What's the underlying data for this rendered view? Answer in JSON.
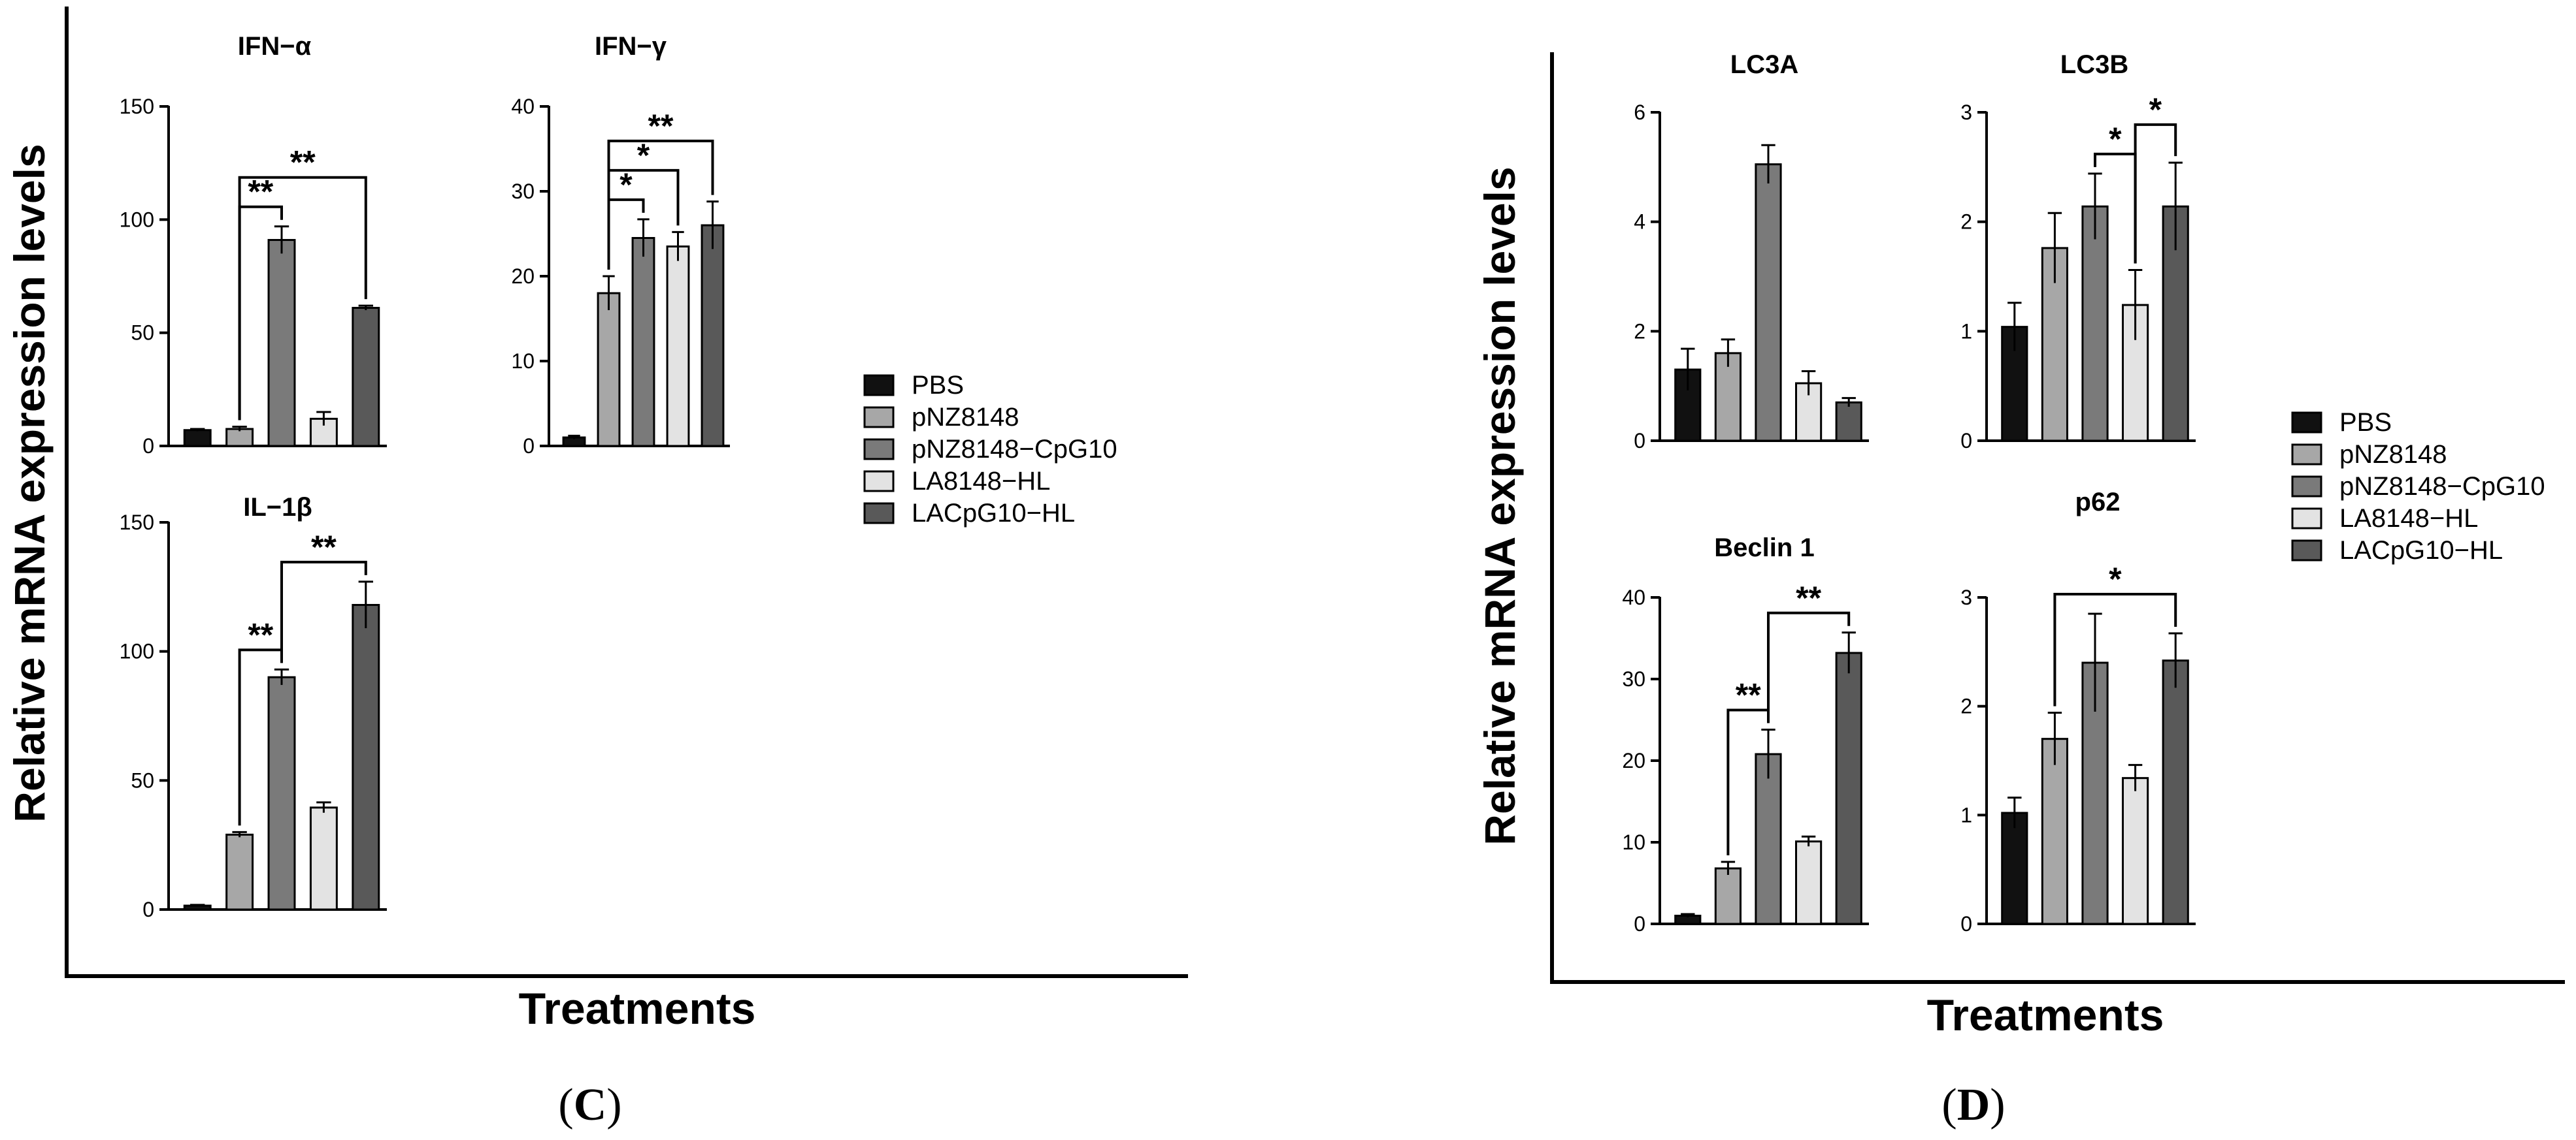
{
  "colors": {
    "PBS": "#111111",
    "pNZ8148": "#a7a7a7",
    "pNZ8148-CpG10": "#7a7a7a",
    "LA8148-HL": "#e3e3e3",
    "LACpG10-HL": "#595959"
  },
  "legend": [
    "PBS",
    "pNZ8148",
    "pNZ8148−CpG10",
    "LA8148−HL",
    "LACpG10−HL"
  ],
  "panels": [
    {
      "label": "C",
      "ylabel": "Relative mRNA expression levels",
      "xlabel": "Treatments"
    },
    {
      "label": "D",
      "ylabel": "Relative mRNA expression levels",
      "xlabel": "Treatments"
    }
  ],
  "chart_data": [
    {
      "type": "bar",
      "panel": "C",
      "title": "IFN−α",
      "categories": [
        "PBS",
        "pNZ8148",
        "pNZ8148-CpG10",
        "LA8148-HL",
        "LACpG10-HL"
      ],
      "values": [
        7,
        7.5,
        91,
        12,
        61
      ],
      "errors": [
        0.5,
        1,
        6,
        3,
        1
      ],
      "ylim": [
        0,
        150
      ],
      "yticks": [
        "0",
        "50",
        "100",
        "150"
      ],
      "significance": [
        {
          "from": 1,
          "to": 2,
          "label": "**"
        },
        {
          "from": 1,
          "to": 4,
          "label": "**"
        }
      ]
    },
    {
      "type": "bar",
      "panel": "C",
      "title": "IFN−γ",
      "categories": [
        "PBS",
        "pNZ8148",
        "pNZ8148-CpG10",
        "LA8148-HL",
        "LACpG10-HL"
      ],
      "values": [
        1,
        18,
        24.5,
        23.5,
        26
      ],
      "errors": [
        0.2,
        2,
        2.2,
        1.7,
        2.8
      ],
      "ylim": [
        0,
        40
      ],
      "yticks": [
        "0",
        "10",
        "20",
        "30",
        "40"
      ],
      "significance": [
        {
          "from": 1,
          "to": 2,
          "label": "*"
        },
        {
          "from": 1,
          "to": 3,
          "label": "*"
        },
        {
          "from": 1,
          "to": 4,
          "label": "**"
        }
      ]
    },
    {
      "type": "bar",
      "panel": "C",
      "title": "IL−1β",
      "categories": [
        "PBS",
        "pNZ8148",
        "pNZ8148-CpG10",
        "LA8148-HL",
        "LACpG10-HL"
      ],
      "values": [
        1.5,
        29,
        90,
        39.5,
        118
      ],
      "errors": [
        0.3,
        1,
        3,
        2,
        9
      ],
      "ylim": [
        0,
        150
      ],
      "yticks": [
        "0",
        "50",
        "100",
        "150"
      ],
      "significance": [
        {
          "from": 1,
          "to": 2,
          "label": "**"
        },
        {
          "from": 2,
          "to": 4,
          "label": "**"
        }
      ]
    },
    {
      "type": "bar",
      "panel": "D",
      "title": "LC3A",
      "categories": [
        "PBS",
        "pNZ8148",
        "pNZ8148-CpG10",
        "LA8148-HL",
        "LACpG10-HL"
      ],
      "values": [
        1.3,
        1.6,
        5.05,
        1.05,
        0.7
      ],
      "errors": [
        0.38,
        0.25,
        0.35,
        0.22,
        0.08
      ],
      "ylim": [
        0,
        6
      ],
      "yticks": [
        "0",
        "2",
        "4",
        "6"
      ],
      "significance": []
    },
    {
      "type": "bar",
      "panel": "D",
      "title": "LC3B",
      "categories": [
        "PBS",
        "pNZ8148",
        "pNZ8148-CpG10",
        "LA8148-HL",
        "LACpG10-HL"
      ],
      "values": [
        1.04,
        1.76,
        2.14,
        1.24,
        2.14
      ],
      "errors": [
        0.22,
        0.32,
        0.3,
        0.32,
        0.4
      ],
      "ylim": [
        0,
        3
      ],
      "yticks": [
        "0",
        "1",
        "2",
        "3"
      ],
      "significance": [
        {
          "from": 2,
          "to": 3,
          "label": "*"
        },
        {
          "from": 3,
          "to": 4,
          "label": "*"
        }
      ]
    },
    {
      "type": "bar",
      "panel": "D",
      "title": "Beclin 1",
      "categories": [
        "PBS",
        "pNZ8148",
        "pNZ8148-CpG10",
        "LA8148-HL",
        "LACpG10-HL"
      ],
      "values": [
        1,
        6.8,
        20.8,
        10.1,
        33.2
      ],
      "errors": [
        0.2,
        0.8,
        3,
        0.6,
        2.5
      ],
      "ylim": [
        0,
        40
      ],
      "yticks": [
        "0",
        "10",
        "20",
        "30",
        "40"
      ],
      "significance": [
        {
          "from": 1,
          "to": 2,
          "label": "**"
        },
        {
          "from": 2,
          "to": 4,
          "label": "**"
        }
      ]
    },
    {
      "type": "bar",
      "panel": "D",
      "title": "p62",
      "categories": [
        "PBS",
        "pNZ8148",
        "pNZ8148-CpG10",
        "LA8148-HL",
        "LACpG10-HL"
      ],
      "values": [
        1.02,
        1.7,
        2.4,
        1.34,
        2.42
      ],
      "errors": [
        0.14,
        0.24,
        0.45,
        0.12,
        0.25
      ],
      "ylim": [
        0,
        3
      ],
      "yticks": [
        "0",
        "1",
        "2",
        "3"
      ],
      "significance": [
        {
          "from": 1,
          "to": 4,
          "label": "*"
        }
      ]
    }
  ]
}
